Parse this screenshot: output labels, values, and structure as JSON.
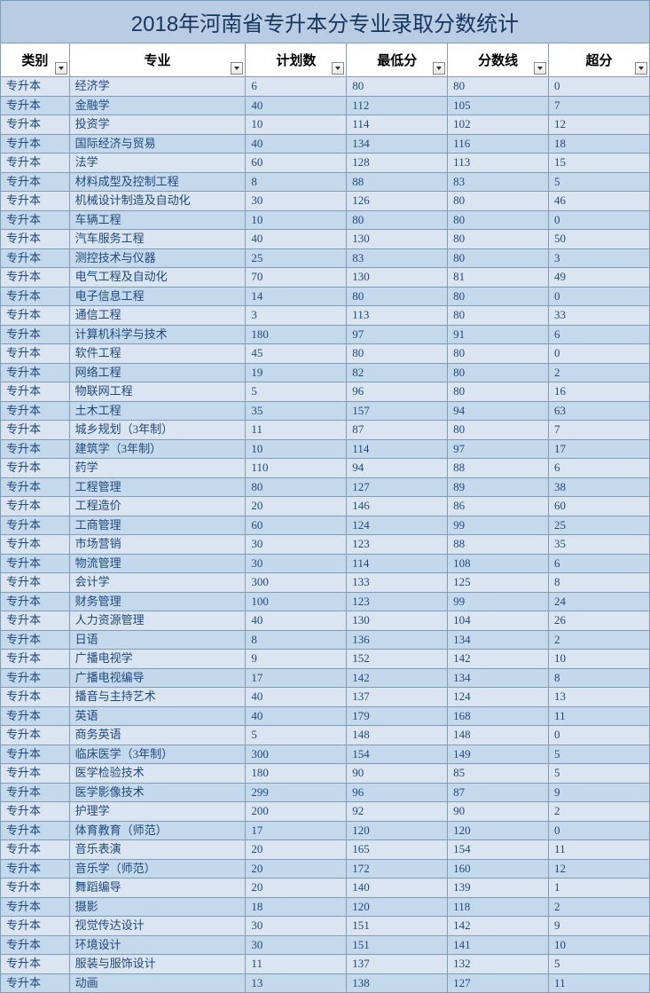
{
  "title": "2018年河南省专升本分专业录取分数统计",
  "columns": [
    "类别",
    "专业",
    "计划数",
    "最低分",
    "分数线",
    "超分"
  ],
  "rows": [
    [
      "专升本",
      "经济学",
      "6",
      "80",
      "80",
      "0"
    ],
    [
      "专升本",
      "金融学",
      "40",
      "112",
      "105",
      "7"
    ],
    [
      "专升本",
      "投资学",
      "10",
      "114",
      "102",
      "12"
    ],
    [
      "专升本",
      "国际经济与贸易",
      "40",
      "134",
      "116",
      "18"
    ],
    [
      "专升本",
      "法学",
      "60",
      "128",
      "113",
      "15"
    ],
    [
      "专升本",
      "材料成型及控制工程",
      "8",
      "88",
      "83",
      "5"
    ],
    [
      "专升本",
      "机械设计制造及自动化",
      "30",
      "126",
      "80",
      "46"
    ],
    [
      "专升本",
      "车辆工程",
      "10",
      "80",
      "80",
      "0"
    ],
    [
      "专升本",
      "汽车服务工程",
      "40",
      "130",
      "80",
      "50"
    ],
    [
      "专升本",
      "测控技术与仪器",
      "25",
      "83",
      "80",
      "3"
    ],
    [
      "专升本",
      "电气工程及自动化",
      "70",
      "130",
      "81",
      "49"
    ],
    [
      "专升本",
      "电子信息工程",
      "14",
      "80",
      "80",
      "0"
    ],
    [
      "专升本",
      "通信工程",
      "3",
      "113",
      "80",
      "33"
    ],
    [
      "专升本",
      "计算机科学与技术",
      "180",
      "97",
      "91",
      "6"
    ],
    [
      "专升本",
      "软件工程",
      "45",
      "80",
      "80",
      "0"
    ],
    [
      "专升本",
      "网络工程",
      "19",
      "82",
      "80",
      "2"
    ],
    [
      "专升本",
      "物联网工程",
      "5",
      "96",
      "80",
      "16"
    ],
    [
      "专升本",
      "土木工程",
      "35",
      "157",
      "94",
      "63"
    ],
    [
      "专升本",
      "城乡规划（3年制）",
      "11",
      "87",
      "80",
      "7"
    ],
    [
      "专升本",
      "建筑学（3年制）",
      "10",
      "114",
      "97",
      "17"
    ],
    [
      "专升本",
      "药学",
      "110",
      "94",
      "88",
      "6"
    ],
    [
      "专升本",
      "工程管理",
      "80",
      "127",
      "89",
      "38"
    ],
    [
      "专升本",
      "工程造价",
      "20",
      "146",
      "86",
      "60"
    ],
    [
      "专升本",
      "工商管理",
      "60",
      "124",
      "99",
      "25"
    ],
    [
      "专升本",
      "市场营销",
      "30",
      "123",
      "88",
      "35"
    ],
    [
      "专升本",
      "物流管理",
      "30",
      "114",
      "108",
      "6"
    ],
    [
      "专升本",
      "会计学",
      "300",
      "133",
      "125",
      "8"
    ],
    [
      "专升本",
      "财务管理",
      "100",
      "123",
      "99",
      "24"
    ],
    [
      "专升本",
      "人力资源管理",
      "40",
      "130",
      "104",
      "26"
    ],
    [
      "专升本",
      "日语",
      "8",
      "136",
      "134",
      "2"
    ],
    [
      "专升本",
      "广播电视学",
      "9",
      "152",
      "142",
      "10"
    ],
    [
      "专升本",
      "广播电视编导",
      "17",
      "142",
      "134",
      "8"
    ],
    [
      "专升本",
      "播音与主持艺术",
      "40",
      "137",
      "124",
      "13"
    ],
    [
      "专升本",
      "英语",
      "40",
      "179",
      "168",
      "11"
    ],
    [
      "专升本",
      "商务英语",
      "5",
      "148",
      "148",
      "0"
    ],
    [
      "专升本",
      "临床医学（3年制）",
      "300",
      "154",
      "149",
      "5"
    ],
    [
      "专升本",
      "医学检验技术",
      "180",
      "90",
      "85",
      "5"
    ],
    [
      "专升本",
      "医学影像技术",
      "299",
      "96",
      "87",
      "9"
    ],
    [
      "专升本",
      "护理学",
      "200",
      "92",
      "90",
      "2"
    ],
    [
      "专升本",
      "体育教育（师范）",
      "17",
      "120",
      "120",
      "0"
    ],
    [
      "专升本",
      "音乐表演",
      "20",
      "165",
      "154",
      "11"
    ],
    [
      "专升本",
      "音乐学（师范）",
      "20",
      "172",
      "160",
      "12"
    ],
    [
      "专升本",
      "舞蹈编导",
      "20",
      "140",
      "139",
      "1"
    ],
    [
      "专升本",
      "摄影",
      "18",
      "120",
      "118",
      "2"
    ],
    [
      "专升本",
      "视觉传达设计",
      "30",
      "151",
      "142",
      "9"
    ],
    [
      "专升本",
      "环境设计",
      "30",
      "151",
      "141",
      "10"
    ],
    [
      "专升本",
      "服装与服饰设计",
      "11",
      "137",
      "132",
      "5"
    ],
    [
      "专升本",
      "动画",
      "13",
      "138",
      "127",
      "11"
    ]
  ],
  "colors": {
    "title_bg": "#b8cce4",
    "title_fg": "#17365d",
    "row_odd": "#dbe5f1",
    "row_even": "#c5d9ec",
    "border": "#7f9db9",
    "text": "#1f497d"
  }
}
